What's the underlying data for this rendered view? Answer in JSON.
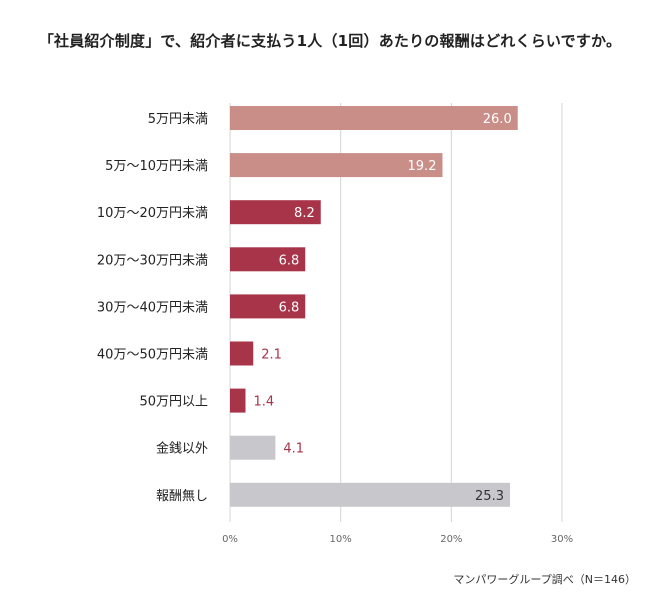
{
  "chart_data": {
    "type": "bar",
    "orientation": "horizontal",
    "title": "「社員紹介制度」で、紹介者に支払う1人（1回）あたりの報酬はどれくらいですか。",
    "categories": [
      "5万円未満",
      "5万～10万円未満",
      "10万～20万円未満",
      "20万～30万円未満",
      "30万～40万円未満",
      "40万～50万円未満",
      "50万円以上",
      "金銭以外",
      "報酬無し"
    ],
    "values": [
      26.0,
      19.2,
      8.2,
      6.8,
      6.8,
      2.1,
      1.4,
      4.1,
      25.3
    ],
    "value_labels": [
      "26.0",
      "19.2",
      "8.2",
      "6.8",
      "6.8",
      "2.1",
      "1.4",
      "4.1",
      "25.3"
    ],
    "bar_colors": [
      "#c98e88",
      "#c98e88",
      "#a8344a",
      "#a8344a",
      "#a8344a",
      "#a8344a",
      "#a8344a",
      "#c8c8cc",
      "#c8c8cc"
    ],
    "xlim": [
      0,
      30
    ],
    "x_ticks": [
      0,
      10,
      20,
      30
    ],
    "x_tick_labels": [
      "0%",
      "10%",
      "20%",
      "30%"
    ],
    "grid": true,
    "xlabel": "",
    "ylabel": ""
  },
  "source_note": "マンパワーグループ調べ（N＝146）"
}
